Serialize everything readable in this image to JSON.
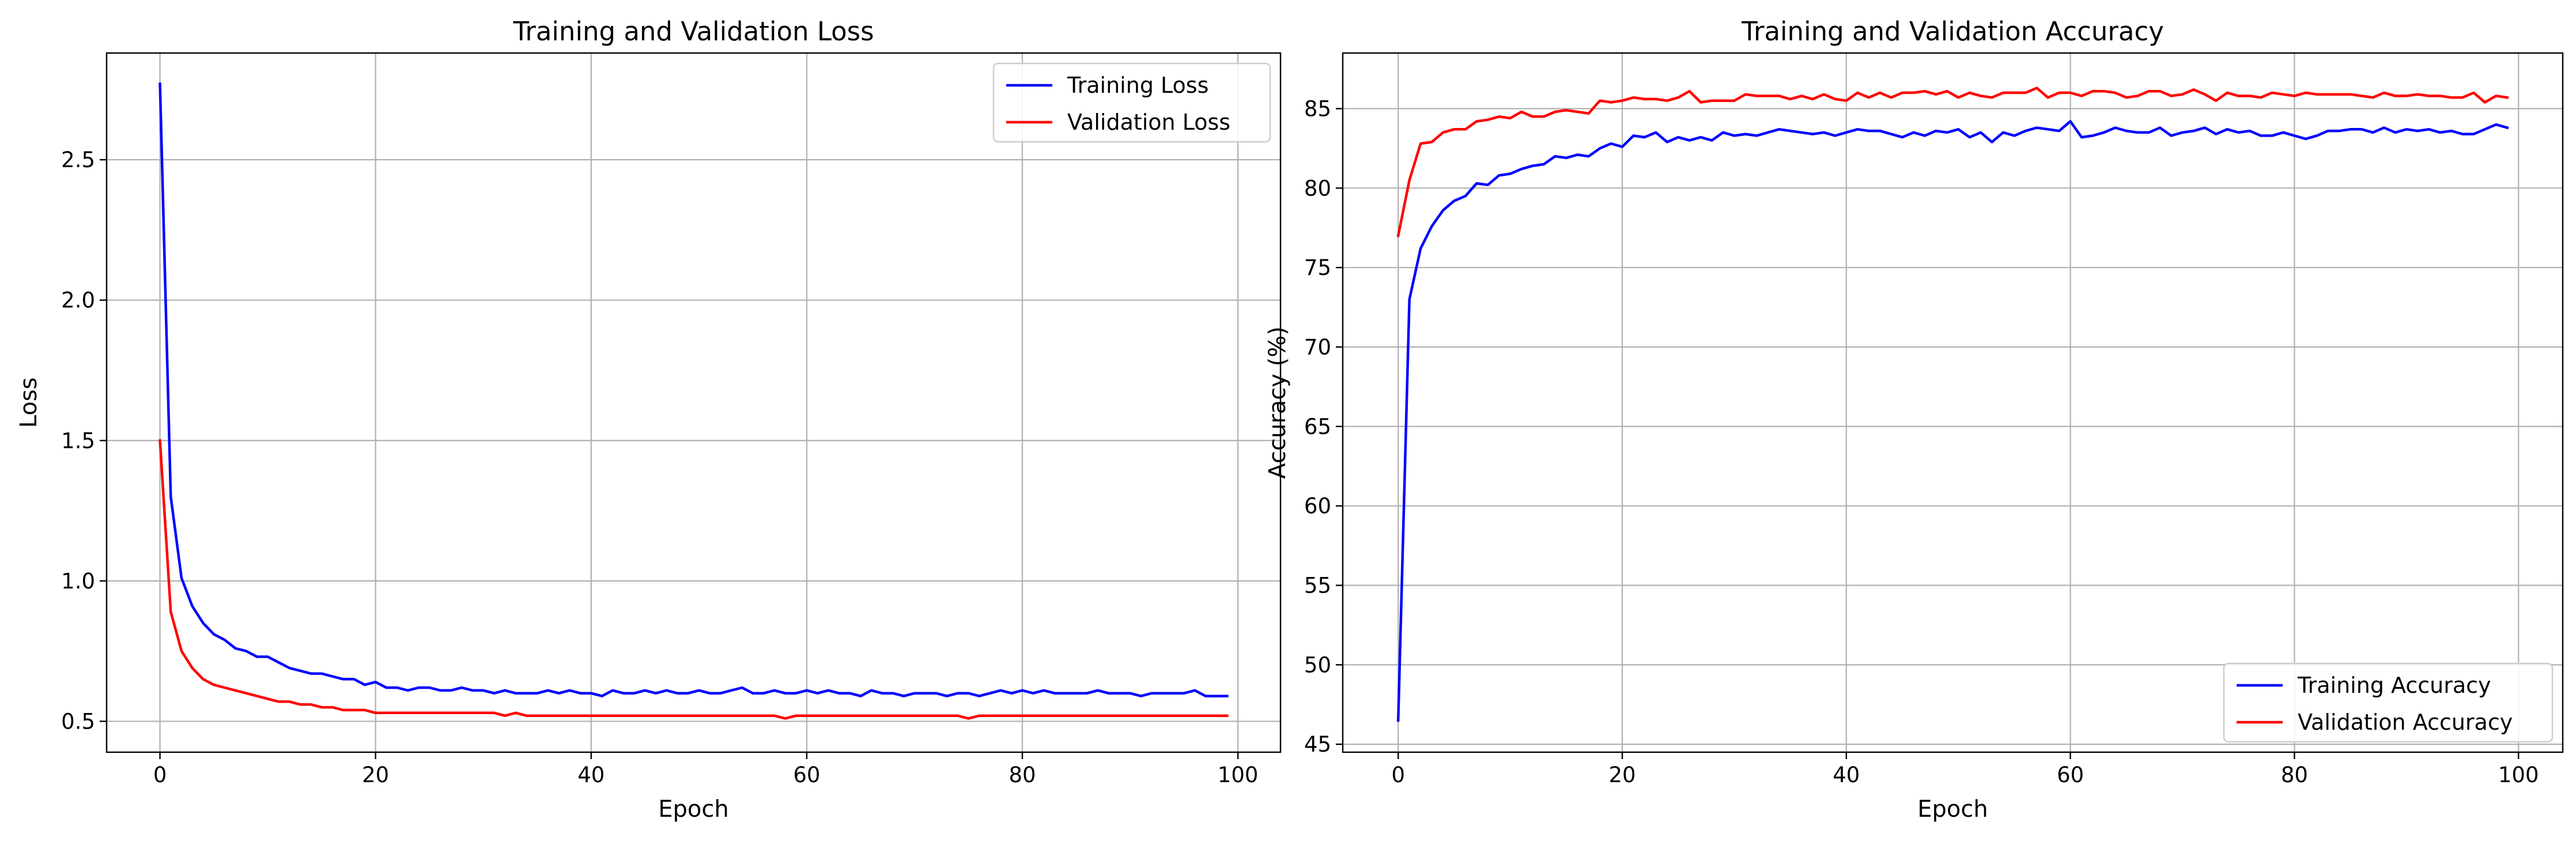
{
  "chart_data": [
    {
      "type": "line",
      "title": "Training and Validation Loss",
      "xlabel": "Epoch",
      "ylabel": "Loss",
      "xlim": [
        -4.95,
        103.95
      ],
      "ylim": [
        0.39,
        2.88
      ],
      "xticks": [
        0,
        20,
        40,
        60,
        80,
        100
      ],
      "yticks": [
        0.5,
        1.0,
        1.5,
        2.0,
        2.5
      ],
      "xtick_labels": [
        "0",
        "20",
        "40",
        "60",
        "80",
        "100"
      ],
      "ytick_labels": [
        "0.5",
        "1.0",
        "1.5",
        "2.0",
        "2.5"
      ],
      "grid": true,
      "legend_position": "upper right",
      "x": [
        0,
        1,
        2,
        3,
        4,
        5,
        6,
        7,
        8,
        9,
        10,
        11,
        12,
        13,
        14,
        15,
        16,
        17,
        18,
        19,
        20,
        21,
        22,
        23,
        24,
        25,
        26,
        27,
        28,
        29,
        30,
        31,
        32,
        33,
        34,
        35,
        36,
        37,
        38,
        39,
        40,
        41,
        42,
        43,
        44,
        45,
        46,
        47,
        48,
        49,
        50,
        51,
        52,
        53,
        54,
        55,
        56,
        57,
        58,
        59,
        60,
        61,
        62,
        63,
        64,
        65,
        66,
        67,
        68,
        69,
        70,
        71,
        72,
        73,
        74,
        75,
        76,
        77,
        78,
        79,
        80,
        81,
        82,
        83,
        84,
        85,
        86,
        87,
        88,
        89,
        90,
        91,
        92,
        93,
        94,
        95,
        96,
        97,
        98,
        99
      ],
      "series": [
        {
          "name": "Training Loss",
          "color": "#0000ff",
          "values": [
            2.77,
            1.3,
            1.01,
            0.91,
            0.85,
            0.81,
            0.79,
            0.76,
            0.75,
            0.73,
            0.73,
            0.71,
            0.69,
            0.68,
            0.67,
            0.67,
            0.66,
            0.65,
            0.65,
            0.63,
            0.64,
            0.62,
            0.62,
            0.61,
            0.62,
            0.62,
            0.61,
            0.61,
            0.62,
            0.61,
            0.61,
            0.6,
            0.61,
            0.6,
            0.6,
            0.6,
            0.61,
            0.6,
            0.61,
            0.6,
            0.6,
            0.59,
            0.61,
            0.6,
            0.6,
            0.61,
            0.6,
            0.61,
            0.6,
            0.6,
            0.61,
            0.6,
            0.6,
            0.61,
            0.62,
            0.6,
            0.6,
            0.61,
            0.6,
            0.6,
            0.61,
            0.6,
            0.61,
            0.6,
            0.6,
            0.59,
            0.61,
            0.6,
            0.6,
            0.59,
            0.6,
            0.6,
            0.6,
            0.59,
            0.6,
            0.6,
            0.59,
            0.6,
            0.61,
            0.6,
            0.61,
            0.6,
            0.61,
            0.6,
            0.6,
            0.6,
            0.6,
            0.61,
            0.6,
            0.6,
            0.6,
            0.59,
            0.6,
            0.6,
            0.6,
            0.6,
            0.61,
            0.59,
            0.59,
            0.59
          ]
        },
        {
          "name": "Validation Loss",
          "color": "#ff0000",
          "values": [
            1.5,
            0.89,
            0.75,
            0.69,
            0.65,
            0.63,
            0.62,
            0.61,
            0.6,
            0.59,
            0.58,
            0.57,
            0.57,
            0.56,
            0.56,
            0.55,
            0.55,
            0.54,
            0.54,
            0.54,
            0.53,
            0.53,
            0.53,
            0.53,
            0.53,
            0.53,
            0.53,
            0.53,
            0.53,
            0.53,
            0.53,
            0.53,
            0.52,
            0.53,
            0.52,
            0.52,
            0.52,
            0.52,
            0.52,
            0.52,
            0.52,
            0.52,
            0.52,
            0.52,
            0.52,
            0.52,
            0.52,
            0.52,
            0.52,
            0.52,
            0.52,
            0.52,
            0.52,
            0.52,
            0.52,
            0.52,
            0.52,
            0.52,
            0.51,
            0.52,
            0.52,
            0.52,
            0.52,
            0.52,
            0.52,
            0.52,
            0.52,
            0.52,
            0.52,
            0.52,
            0.52,
            0.52,
            0.52,
            0.52,
            0.52,
            0.51,
            0.52,
            0.52,
            0.52,
            0.52,
            0.52,
            0.52,
            0.52,
            0.52,
            0.52,
            0.52,
            0.52,
            0.52,
            0.52,
            0.52,
            0.52,
            0.52,
            0.52,
            0.52,
            0.52,
            0.52,
            0.52,
            0.52,
            0.52,
            0.52
          ]
        }
      ]
    },
    {
      "type": "line",
      "title": "Training and Validation Accuracy",
      "xlabel": "Epoch",
      "ylabel": "Accuracy (%)",
      "xlim": [
        -4.95,
        103.95
      ],
      "ylim": [
        44.5,
        88.5
      ],
      "xticks": [
        0,
        20,
        40,
        60,
        80,
        100
      ],
      "yticks": [
        45,
        50,
        55,
        60,
        65,
        70,
        75,
        80,
        85
      ],
      "xtick_labels": [
        "0",
        "20",
        "40",
        "60",
        "80",
        "100"
      ],
      "ytick_labels": [
        "45",
        "50",
        "55",
        "60",
        "65",
        "70",
        "75",
        "80",
        "85"
      ],
      "grid": true,
      "legend_position": "lower right",
      "x": [
        0,
        1,
        2,
        3,
        4,
        5,
        6,
        7,
        8,
        9,
        10,
        11,
        12,
        13,
        14,
        15,
        16,
        17,
        18,
        19,
        20,
        21,
        22,
        23,
        24,
        25,
        26,
        27,
        28,
        29,
        30,
        31,
        32,
        33,
        34,
        35,
        36,
        37,
        38,
        39,
        40,
        41,
        42,
        43,
        44,
        45,
        46,
        47,
        48,
        49,
        50,
        51,
        52,
        53,
        54,
        55,
        56,
        57,
        58,
        59,
        60,
        61,
        62,
        63,
        64,
        65,
        66,
        67,
        68,
        69,
        70,
        71,
        72,
        73,
        74,
        75,
        76,
        77,
        78,
        79,
        80,
        81,
        82,
        83,
        84,
        85,
        86,
        87,
        88,
        89,
        90,
        91,
        92,
        93,
        94,
        95,
        96,
        97,
        98,
        99
      ],
      "series": [
        {
          "name": "Training Accuracy",
          "color": "#0000ff",
          "values": [
            46.5,
            73.0,
            76.2,
            77.6,
            78.6,
            79.2,
            79.5,
            80.3,
            80.2,
            80.8,
            80.9,
            81.2,
            81.4,
            81.5,
            82.0,
            81.9,
            82.1,
            82.0,
            82.5,
            82.8,
            82.6,
            83.3,
            83.2,
            83.5,
            82.9,
            83.2,
            83.0,
            83.2,
            83.0,
            83.5,
            83.3,
            83.4,
            83.3,
            83.5,
            83.7,
            83.6,
            83.5,
            83.4,
            83.5,
            83.3,
            83.5,
            83.7,
            83.6,
            83.6,
            83.4,
            83.2,
            83.5,
            83.3,
            83.6,
            83.5,
            83.7,
            83.2,
            83.5,
            82.9,
            83.5,
            83.3,
            83.6,
            83.8,
            83.7,
            83.6,
            84.2,
            83.2,
            83.3,
            83.5,
            83.8,
            83.6,
            83.5,
            83.5,
            83.8,
            83.3,
            83.5,
            83.6,
            83.8,
            83.4,
            83.7,
            83.5,
            83.6,
            83.3,
            83.3,
            83.5,
            83.3,
            83.1,
            83.3,
            83.6,
            83.6,
            83.7,
            83.7,
            83.5,
            83.8,
            83.5,
            83.7,
            83.6,
            83.7,
            83.5,
            83.6,
            83.4,
            83.4,
            83.7,
            84.0,
            83.8
          ]
        },
        {
          "name": "Validation Accuracy",
          "color": "#ff0000",
          "values": [
            77.0,
            80.5,
            82.8,
            82.9,
            83.5,
            83.7,
            83.7,
            84.2,
            84.3,
            84.5,
            84.4,
            84.8,
            84.5,
            84.5,
            84.8,
            84.9,
            84.8,
            84.7,
            85.5,
            85.4,
            85.5,
            85.7,
            85.6,
            85.6,
            85.5,
            85.7,
            86.1,
            85.4,
            85.5,
            85.5,
            85.5,
            85.9,
            85.8,
            85.8,
            85.8,
            85.6,
            85.8,
            85.6,
            85.9,
            85.6,
            85.5,
            86.0,
            85.7,
            86.0,
            85.7,
            86.0,
            86.0,
            86.1,
            85.9,
            86.1,
            85.7,
            86.0,
            85.8,
            85.7,
            86.0,
            86.0,
            86.0,
            86.3,
            85.7,
            86.0,
            86.0,
            85.8,
            86.1,
            86.1,
            86.0,
            85.7,
            85.8,
            86.1,
            86.1,
            85.8,
            85.9,
            86.2,
            85.9,
            85.5,
            86.0,
            85.8,
            85.8,
            85.7,
            86.0,
            85.9,
            85.8,
            86.0,
            85.9,
            85.9,
            85.9,
            85.9,
            85.8,
            85.7,
            86.0,
            85.8,
            85.8,
            85.9,
            85.8,
            85.8,
            85.7,
            85.7,
            86.0,
            85.4,
            85.8,
            85.7
          ]
        }
      ]
    }
  ]
}
